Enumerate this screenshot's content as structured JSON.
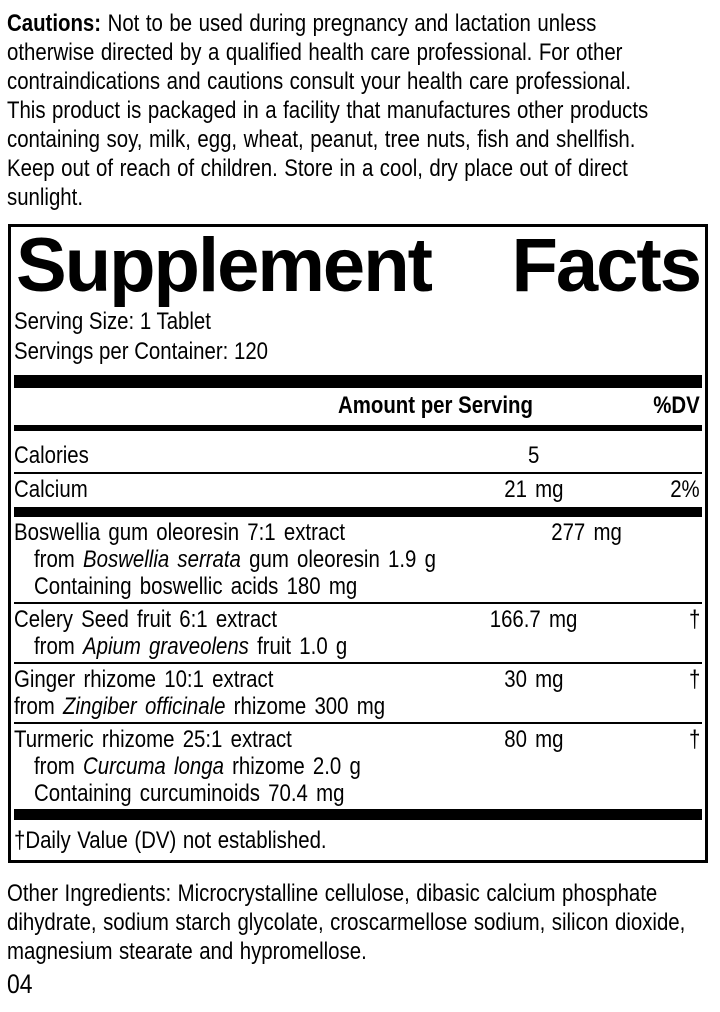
{
  "colors": {
    "text": "#000000",
    "background": "#ffffff"
  },
  "cautions": {
    "bold_label": "Cautions:",
    "line1_rest": " Not to be used during pregnancy and lactation unless",
    "lines": [
      "otherwise directed by a qualified health care professional. For other",
      "contraindications and cautions consult your health care professional.",
      "This product is packaged in a facility that manufactures other products",
      "containing soy, milk, egg, wheat, peanut, tree nuts, fish and shellfish.",
      "Keep out of reach of children. Store in a cool, dry place out of direct",
      "sunlight."
    ]
  },
  "panel": {
    "title_words": [
      "Supplement",
      "Facts"
    ],
    "serving_size": "Serving Size: 1 Tablet",
    "servings_per_container": "Servings per Container: 120",
    "amount_header": "Amount per Serving",
    "dv_header": "%DV",
    "nutrients": [
      {
        "name": "Calories",
        "amount": "5",
        "dv": ""
      },
      {
        "name": "Calcium",
        "amount": "21 mg",
        "dv": "2%"
      }
    ],
    "herbs": [
      {
        "name": "Boswellia gum oleoresin 7:1 extract",
        "amount": "277 mg",
        "dv": "†",
        "sublines": [
          {
            "pre": "from ",
            "italic": "Boswellia serrata",
            "post": " gum oleoresin 1.9 g"
          },
          {
            "pre": "Containing boswellic acids 180 mg",
            "italic": "",
            "post": ""
          }
        ]
      },
      {
        "name": "Celery Seed fruit 6:1 extract",
        "amount": "166.7 mg",
        "dv": "†",
        "sublines": [
          {
            "pre": "from ",
            "italic": "Apium graveolens",
            "post": " fruit 1.0 g"
          }
        ]
      },
      {
        "name": "Ginger rhizome 10:1 extract",
        "amount": "30 mg",
        "dv": "†",
        "sublines": [
          {
            "pre": "from ",
            "italic": "Zingiber officinale",
            "post": " rhizome 300 mg"
          }
        ]
      },
      {
        "name": "Turmeric rhizome 25:1 extract",
        "amount": "80 mg",
        "dv": "†",
        "sublines": [
          {
            "pre": "from ",
            "italic": "Curcuma longa",
            "post": " rhizome 2.0 g"
          },
          {
            "pre": "Containing curcuminoids 70.4 mg",
            "italic": "",
            "post": ""
          }
        ]
      }
    ],
    "footnote": "†Daily Value (DV) not established."
  },
  "other_ingredients": {
    "lines": [
      "Other Ingredients: Microcrystalline cellulose, dibasic calcium phosphate",
      "dihydrate, sodium starch glycolate, croscarmellose sodium, silicon dioxide,",
      "magnesium stearate and hypromellose."
    ]
  },
  "page_number": "04"
}
